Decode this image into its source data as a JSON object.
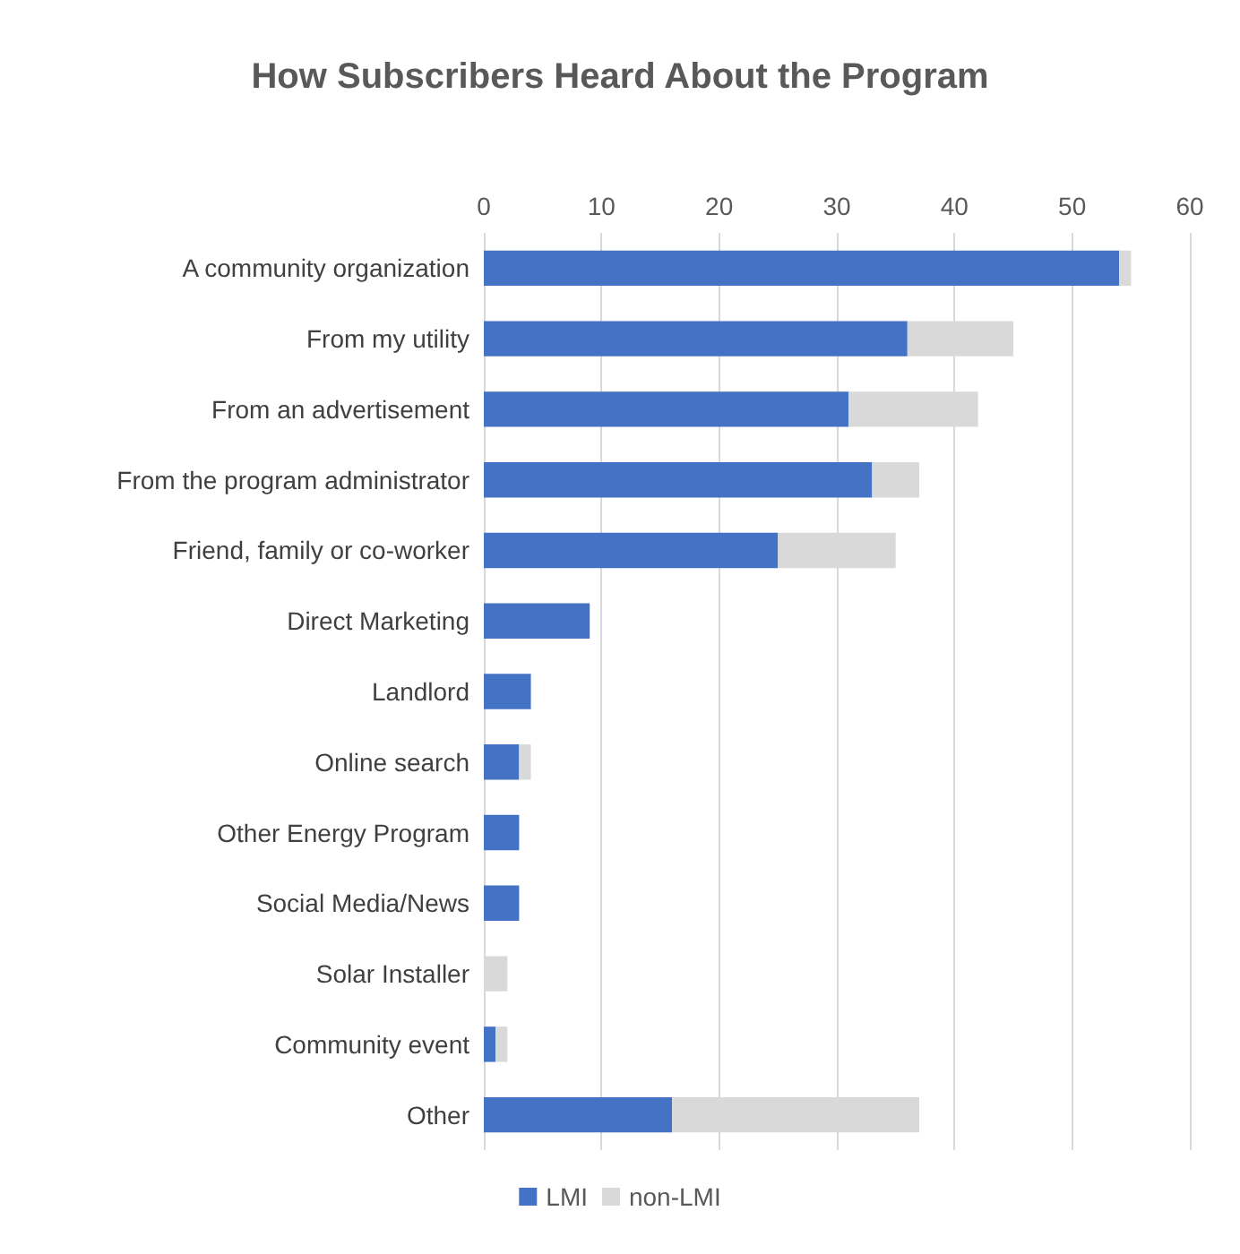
{
  "chart_data": {
    "type": "bar",
    "orientation": "horizontal",
    "stacked": true,
    "title": "How Subscribers Heard About the Program",
    "categories": [
      "A community organization",
      "From my utility",
      "From an advertisement",
      "From the program administrator",
      "Friend, family or co-worker",
      "Direct Marketing",
      "Landlord",
      "Online search",
      "Other Energy Program",
      "Social Media/News",
      "Solar Installer",
      "Community event",
      "Other"
    ],
    "series": [
      {
        "name": "LMI",
        "color": "#4472c4",
        "values": [
          54,
          36,
          31,
          33,
          25,
          9,
          4,
          3,
          3,
          3,
          0,
          1,
          16
        ]
      },
      {
        "name": "non-LMI",
        "color": "#d9d9d9",
        "values": [
          1,
          9,
          11,
          4,
          10,
          0,
          0,
          1,
          0,
          0,
          2,
          1,
          21
        ]
      }
    ],
    "xlim": [
      0,
      60
    ],
    "xticks": [
      0,
      10,
      20,
      30,
      40,
      50,
      60
    ],
    "grid": "x",
    "legend": "bottom"
  }
}
